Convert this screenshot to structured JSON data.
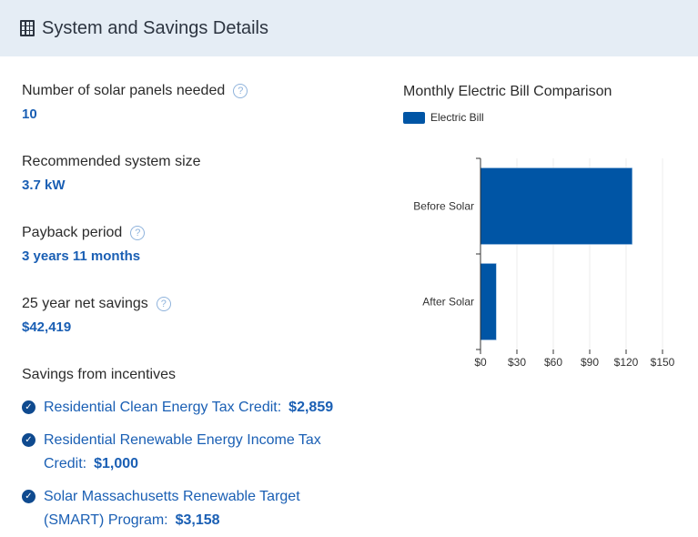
{
  "header": {
    "title": "System and Savings Details",
    "icon": "table-grid-icon"
  },
  "details": [
    {
      "label": "Number of solar panels needed",
      "value": "10",
      "help": true
    },
    {
      "label": "Recommended system size",
      "value": "3.7 kW",
      "help": false
    },
    {
      "label": "Payback period",
      "value": "3 years 11 months",
      "help": true
    },
    {
      "label": "25 year net savings",
      "value": "$42,419",
      "help": true
    }
  ],
  "incentives": {
    "title": "Savings from incentives",
    "items": [
      {
        "name": "Residential Clean Energy Tax Credit:",
        "amount": "$2,859"
      },
      {
        "name": "Residential Renewable Energy Income Tax Credit:",
        "amount": "$1,000"
      },
      {
        "name": "Solar Massachusetts Renewable Target (SMART) Program:",
        "amount": "$3,158"
      }
    ]
  },
  "chart_data": {
    "type": "bar",
    "orientation": "horizontal",
    "title": "Monthly Electric Bill Comparison",
    "legend": "Electric Bill",
    "legend_position": "top-left",
    "categories": [
      "Before Solar",
      "After Solar"
    ],
    "series": [
      {
        "name": "Electric Bill",
        "values": [
          125,
          13
        ]
      }
    ],
    "xlim": [
      0,
      150
    ],
    "xticks": [
      "$0",
      "$30",
      "$60",
      "$90",
      "$120",
      "$150"
    ],
    "grid": true,
    "color": "#0055a5"
  }
}
